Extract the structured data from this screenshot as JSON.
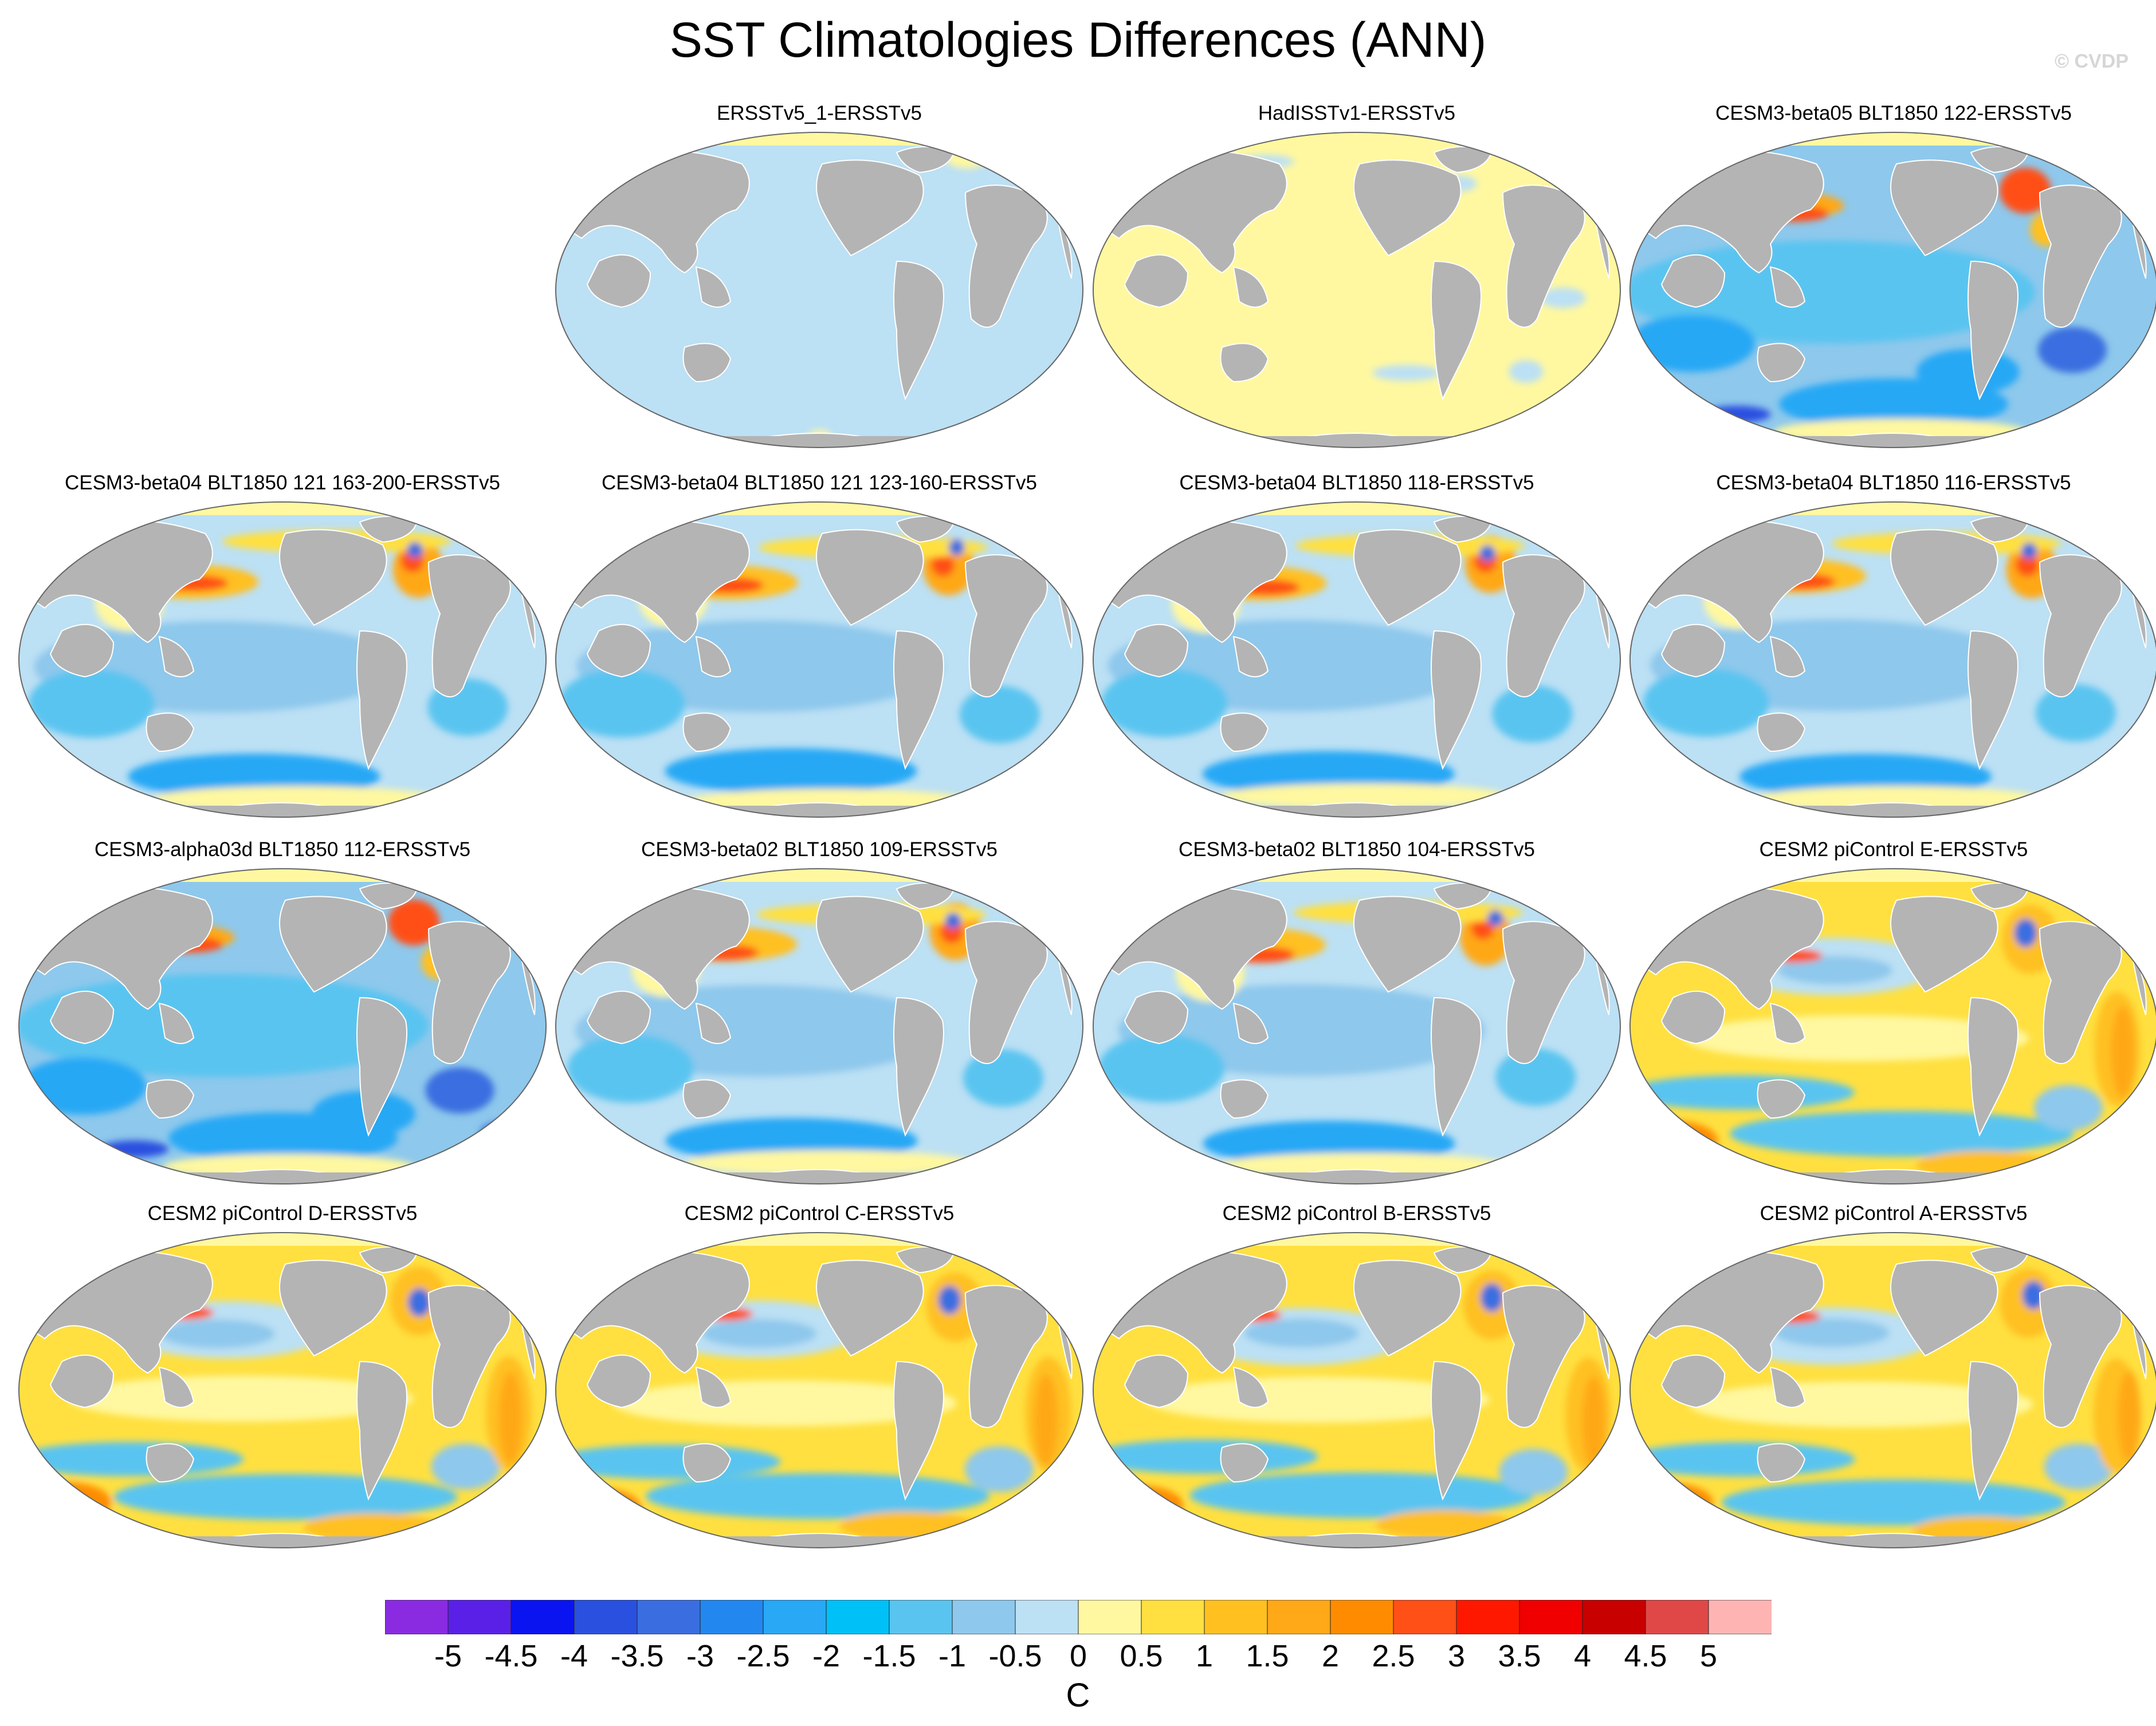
{
  "title": "SST Climatologies Differences (ANN)",
  "watermark": "© CVDP",
  "panels": [
    {
      "label": "ERSSTv5_1-ERSSTv5",
      "pattern": "uniform_light_blue"
    },
    {
      "label": "HadISSTv1-ERSSTv5",
      "pattern": "uniform_light_yellow"
    },
    {
      "label": "CESM3-beta05 BLT1850 122-ERSSTv5",
      "pattern": "cold"
    },
    {
      "label": "CESM3-beta04 BLT1850 121 163-200-ERSSTv5",
      "pattern": "cool"
    },
    {
      "label": "CESM3-beta04 BLT1850 121 123-160-ERSSTv5",
      "pattern": "cool"
    },
    {
      "label": "CESM3-beta04 BLT1850 118-ERSSTv5",
      "pattern": "cool"
    },
    {
      "label": "CESM3-beta04 BLT1850 116-ERSSTv5",
      "pattern": "cool"
    },
    {
      "label": "CESM3-alpha03d BLT1850 112-ERSSTv5",
      "pattern": "cold"
    },
    {
      "label": "CESM3-beta02 BLT1850 109-ERSSTv5",
      "pattern": "cool"
    },
    {
      "label": "CESM3-beta02 BLT1850 104-ERSSTv5",
      "pattern": "cool"
    },
    {
      "label": "CESM2 piControl E-ERSSTv5",
      "pattern": "warm"
    },
    {
      "label": "CESM2 piControl D-ERSSTv5",
      "pattern": "warm"
    },
    {
      "label": "CESM2 piControl C-ERSSTv5",
      "pattern": "warm"
    },
    {
      "label": "CESM2 piControl B-ERSSTv5",
      "pattern": "warm"
    },
    {
      "label": "CESM2 piControl A-ERSSTv5",
      "pattern": "warm"
    }
  ],
  "colorbar": {
    "colors": [
      "#8a2be2",
      "#5a20e8",
      "#0a14f0",
      "#2a50e0",
      "#3a6ee0",
      "#2288f0",
      "#28a8f5",
      "#00c0f8",
      "#5ac4f0",
      "#8ec8ec",
      "#bce0f4",
      "#fff8a0",
      "#ffe040",
      "#ffc020",
      "#ffa818",
      "#ff8c00",
      "#ff5018",
      "#ff1800",
      "#f00000",
      "#c80000",
      "#e04848",
      "#ffb4b4"
    ],
    "labels": [
      "-5",
      "-4.5",
      "-4",
      "-3.5",
      "-3",
      "-2.5",
      "-2",
      "-1.5",
      "-1",
      "-0.5",
      "0",
      "0.5",
      "1",
      "1.5",
      "2",
      "2.5",
      "3",
      "3.5",
      "4",
      "4.5",
      "5"
    ],
    "units": "C"
  }
}
